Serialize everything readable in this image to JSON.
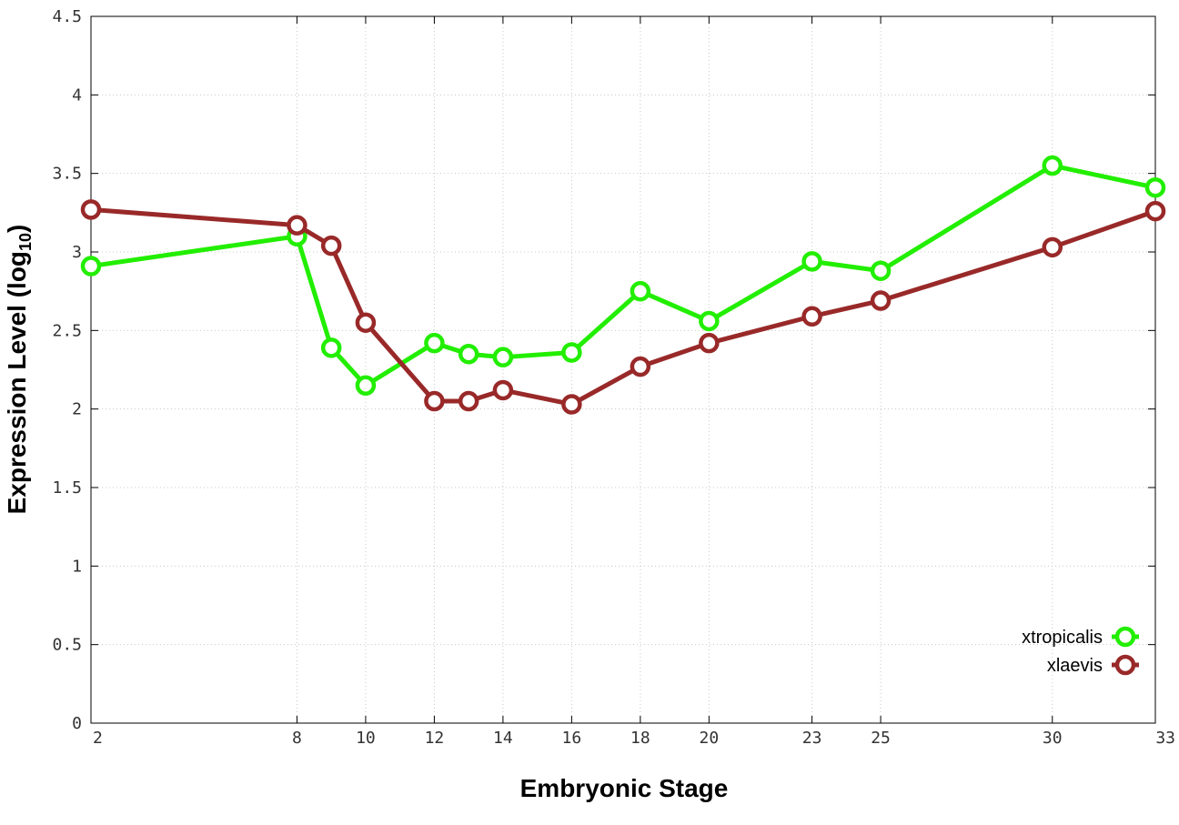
{
  "chart_data": {
    "type": "line",
    "xlabel": "Embryonic Stage",
    "ylabel": "Expression Level (log",
    "ylabel_sub": "10",
    "ylabel_close": ")",
    "ylim": [
      0,
      4.5
    ],
    "xlim": [
      2,
      33
    ],
    "y_ticks": [
      0,
      0.5,
      1,
      1.5,
      2,
      2.5,
      3,
      3.5,
      4,
      4.5
    ],
    "y_tick_labels": [
      "0",
      "0.5",
      "1",
      "1.5",
      "2",
      "2.5",
      "3",
      "3.5",
      "4",
      "4.5"
    ],
    "x_ticks": [
      2,
      8,
      10,
      12,
      14,
      16,
      18,
      20,
      23,
      25,
      30,
      33
    ],
    "x_tick_labels": [
      "2",
      "8",
      "10",
      "12",
      "14",
      "16",
      "18",
      "20",
      "23",
      "25",
      "30",
      "33"
    ],
    "x": [
      2,
      8,
      9,
      10,
      12,
      13,
      14,
      16,
      18,
      20,
      23,
      25,
      30,
      33
    ],
    "grid": true,
    "legend_position": "bottom-right",
    "series": [
      {
        "name": "xtropicalis",
        "color": "#22ee00",
        "values": [
          2.91,
          3.1,
          2.39,
          2.15,
          2.42,
          2.35,
          2.33,
          2.36,
          2.75,
          2.56,
          2.94,
          2.88,
          3.55,
          3.41
        ]
      },
      {
        "name": "xlaevis",
        "color": "#992929",
        "values": [
          3.27,
          3.17,
          3.04,
          2.55,
          2.05,
          2.05,
          2.12,
          2.03,
          2.27,
          2.42,
          2.59,
          2.69,
          3.03,
          3.26
        ]
      }
    ]
  }
}
